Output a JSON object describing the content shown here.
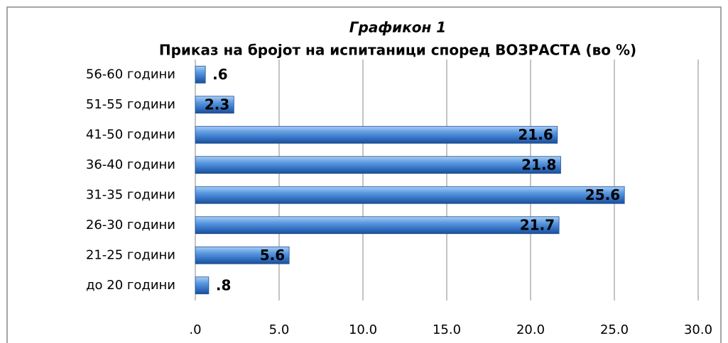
{
  "chart_data": {
    "type": "bar",
    "orientation": "horizontal",
    "title": "Графикон 1",
    "subtitle": "Приказ на бројот на испитаници според ВОЗРАСТА (во %)",
    "categories": [
      "56-60 години",
      "51-55 години",
      "41-50 години",
      "36-40 години",
      "31-35 години",
      "26-30 години",
      "21-25 години",
      "до 20 години"
    ],
    "values": [
      0.6,
      2.3,
      21.6,
      21.8,
      25.6,
      21.7,
      5.6,
      0.8
    ],
    "value_labels": [
      ".6",
      "2.3",
      "21.6",
      "21.8",
      "25.6",
      "21.7",
      "5.6",
      ".8"
    ],
    "color": "#3f7fcf",
    "xlim": [
      0,
      30
    ],
    "xticks": [
      {
        "value": 0,
        "label": ".0"
      },
      {
        "value": 5,
        "label": "5.0"
      },
      {
        "value": 10,
        "label": "10.0"
      },
      {
        "value": 15,
        "label": "15.0"
      },
      {
        "value": 20,
        "label": "20.0"
      },
      {
        "value": 25,
        "label": "25.0"
      },
      {
        "value": 30,
        "label": "30.0"
      }
    ],
    "grid": true
  }
}
